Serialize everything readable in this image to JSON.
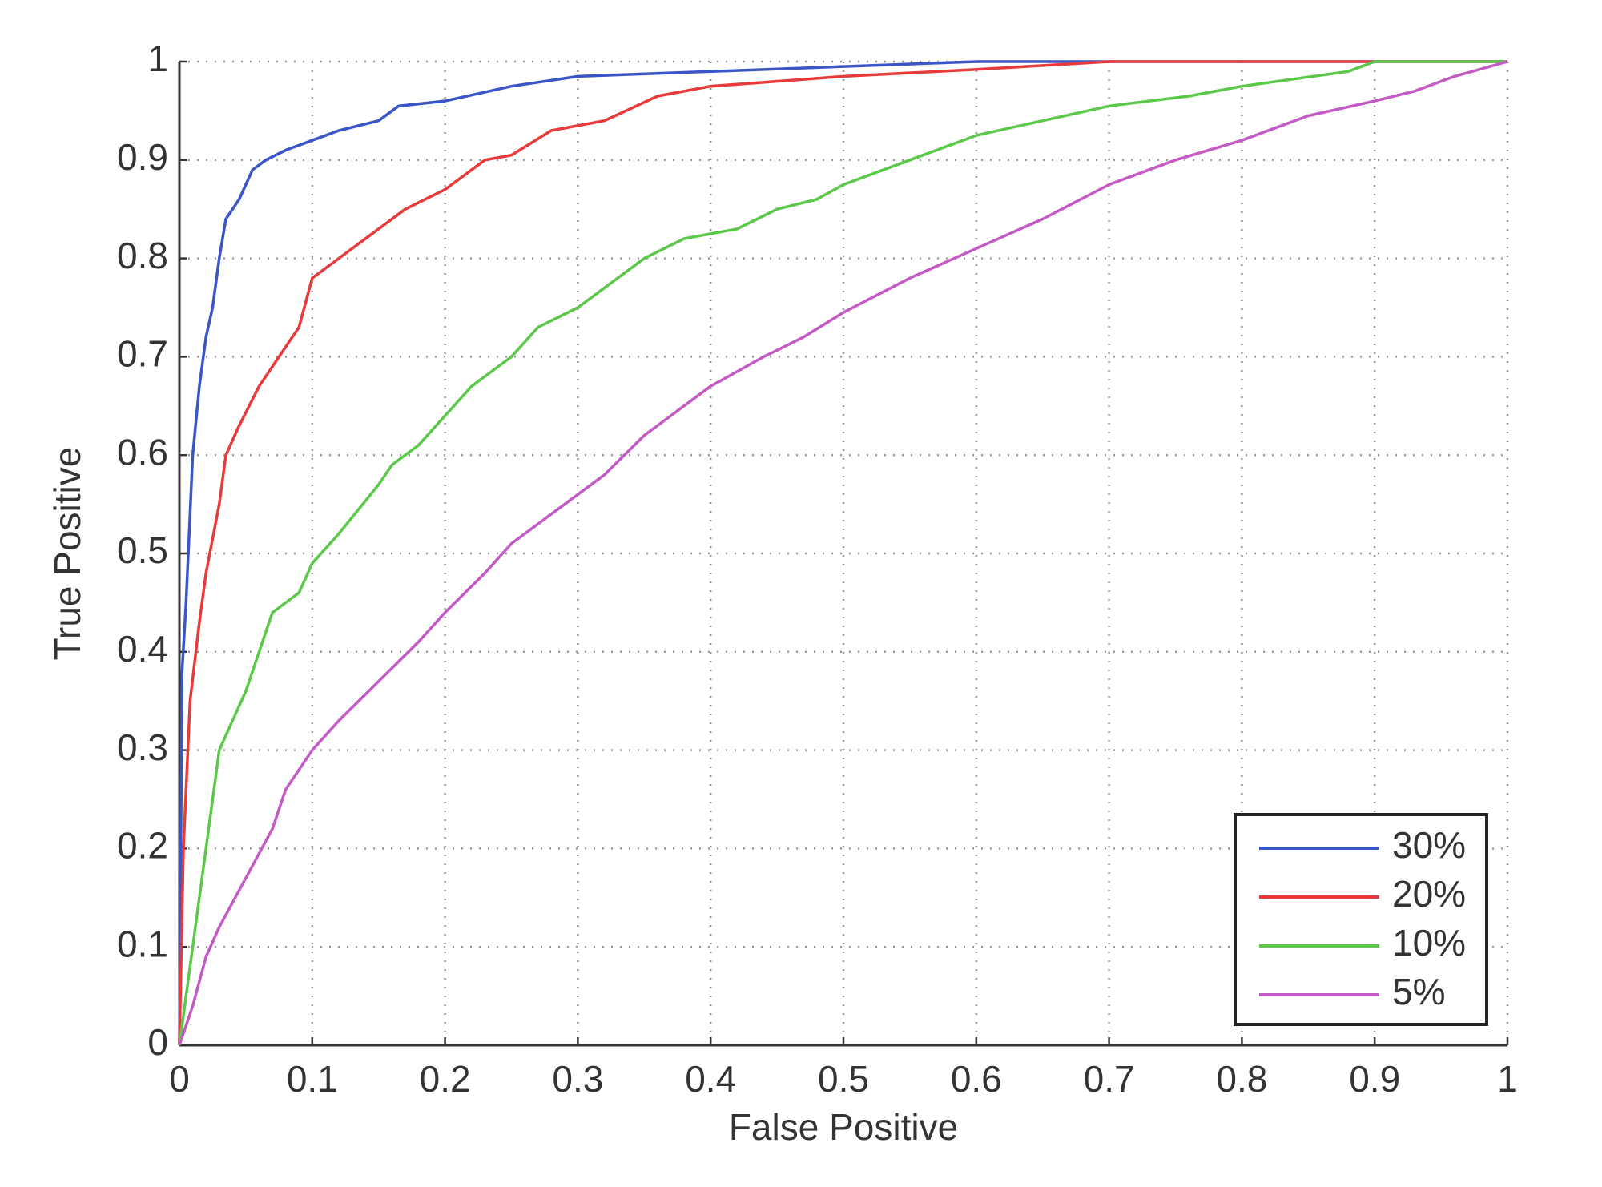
{
  "chart_data": {
    "type": "line",
    "xlabel": "False Positive",
    "ylabel": "True Positive",
    "xlim": [
      0,
      1
    ],
    "ylim": [
      0,
      1
    ],
    "xticks": [
      0,
      0.1,
      0.2,
      0.3,
      0.4,
      0.5,
      0.6,
      0.7,
      0.8,
      0.9,
      1
    ],
    "yticks": [
      0,
      0.1,
      0.2,
      0.3,
      0.4,
      0.5,
      0.6,
      0.7,
      0.8,
      0.9,
      1
    ],
    "grid": true,
    "legend": "lower right",
    "series": [
      {
        "name": "30%",
        "color": "#3a55c8",
        "x": [
          0,
          0.002,
          0.005,
          0.01,
          0.015,
          0.02,
          0.025,
          0.03,
          0.035,
          0.045,
          0.055,
          0.065,
          0.08,
          0.1,
          0.12,
          0.15,
          0.165,
          0.2,
          0.25,
          0.3,
          0.4,
          0.5,
          0.6,
          1
        ],
        "values": [
          0,
          0.38,
          0.45,
          0.6,
          0.67,
          0.72,
          0.75,
          0.8,
          0.84,
          0.86,
          0.89,
          0.9,
          0.91,
          0.92,
          0.93,
          0.94,
          0.955,
          0.96,
          0.975,
          0.985,
          0.99,
          0.995,
          1,
          1
        ]
      },
      {
        "name": "20%",
        "color": "#e83a3a",
        "x": [
          0,
          0.003,
          0.008,
          0.015,
          0.02,
          0.03,
          0.035,
          0.045,
          0.06,
          0.08,
          0.09,
          0.1,
          0.12,
          0.15,
          0.17,
          0.2,
          0.23,
          0.25,
          0.28,
          0.32,
          0.36,
          0.4,
          0.5,
          0.6,
          0.7,
          1
        ],
        "values": [
          0,
          0.2,
          0.35,
          0.43,
          0.48,
          0.55,
          0.6,
          0.63,
          0.67,
          0.71,
          0.73,
          0.78,
          0.8,
          0.83,
          0.85,
          0.87,
          0.9,
          0.905,
          0.93,
          0.94,
          0.965,
          0.975,
          0.985,
          0.992,
          1,
          1
        ]
      },
      {
        "name": "10%",
        "color": "#5cc84a",
        "x": [
          0,
          0.01,
          0.02,
          0.03,
          0.04,
          0.05,
          0.06,
          0.07,
          0.09,
          0.1,
          0.12,
          0.15,
          0.16,
          0.18,
          0.2,
          0.22,
          0.25,
          0.27,
          0.3,
          0.33,
          0.35,
          0.38,
          0.42,
          0.45,
          0.48,
          0.5,
          0.55,
          0.6,
          0.65,
          0.7,
          0.76,
          0.8,
          0.88,
          0.9,
          1
        ],
        "values": [
          0,
          0.1,
          0.2,
          0.3,
          0.33,
          0.36,
          0.4,
          0.44,
          0.46,
          0.49,
          0.52,
          0.57,
          0.59,
          0.61,
          0.64,
          0.67,
          0.7,
          0.73,
          0.75,
          0.78,
          0.8,
          0.82,
          0.83,
          0.85,
          0.86,
          0.875,
          0.9,
          0.925,
          0.94,
          0.955,
          0.965,
          0.975,
          0.99,
          1,
          1
        ]
      },
      {
        "name": "5%",
        "color": "#c45ac4",
        "x": [
          0,
          0.01,
          0.02,
          0.03,
          0.05,
          0.07,
          0.08,
          0.1,
          0.12,
          0.15,
          0.18,
          0.2,
          0.23,
          0.25,
          0.3,
          0.32,
          0.35,
          0.4,
          0.44,
          0.47,
          0.5,
          0.55,
          0.6,
          0.65,
          0.7,
          0.75,
          0.8,
          0.85,
          0.9,
          0.93,
          0.96,
          1
        ],
        "values": [
          0,
          0.04,
          0.09,
          0.12,
          0.17,
          0.22,
          0.26,
          0.3,
          0.33,
          0.37,
          0.41,
          0.44,
          0.48,
          0.51,
          0.56,
          0.58,
          0.62,
          0.67,
          0.7,
          0.72,
          0.745,
          0.78,
          0.81,
          0.84,
          0.875,
          0.9,
          0.92,
          0.945,
          0.96,
          0.97,
          0.985,
          1
        ]
      }
    ]
  }
}
